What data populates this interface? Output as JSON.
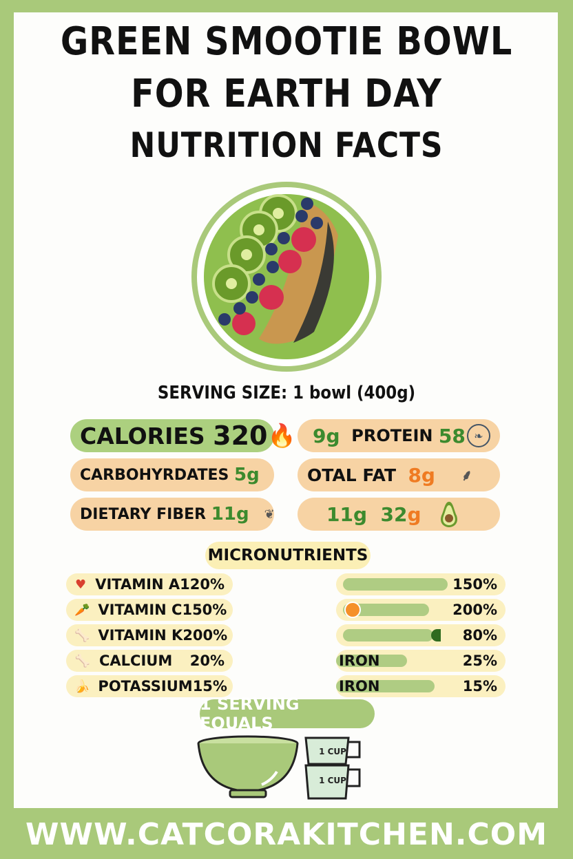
{
  "title_line1": "GREEN SMOOTIE BOWL",
  "title_line2": "FOR EARTH DAY",
  "title_line3": "NUTRITION FACTS",
  "serving_size": "SERVING SIZE: 1 bowl (400g)",
  "macros": {
    "calories": {
      "label": "CALORIES",
      "value": "320",
      "icon": "flame-icon"
    },
    "carbs": {
      "label": "CARBOHYRDATES",
      "value": "5g"
    },
    "fiber": {
      "label": "DIETARY FIBER",
      "value": "11g",
      "icon": "leaves-icon"
    },
    "protein": {
      "prefix": "9g",
      "label": "PROTEIN",
      "value": "58",
      "icon": "leaf-circle-icon"
    },
    "fat": {
      "label": "OTAL FAT",
      "value": "8g",
      "icon": "sprig-icon"
    },
    "extra": {
      "value1": "11g",
      "value2a": "32",
      "value2b": "g",
      "icon": "avocado-icon"
    }
  },
  "micronutrients_title": "MICRONUTRIENTS",
  "micros_left": [
    {
      "icon": "heart-icon",
      "name": "VITAMIN A",
      "value": "120%"
    },
    {
      "icon": "carrot-icon",
      "name": "VITAMIN C",
      "value": "150%"
    },
    {
      "icon": "bone-icon",
      "name": "VITAMIN K",
      "value": "200%"
    },
    {
      "icon": "bone-icon",
      "name": "CALCIUM",
      "value": "20%"
    },
    {
      "icon": "banana-icon",
      "name": "POTASSIUM",
      "value": "15%"
    }
  ],
  "micros_right": [
    {
      "label": "",
      "value": "150%",
      "fill": 1.0
    },
    {
      "label": "",
      "value": "200%",
      "fill": 0.82,
      "icon": "orange-icon"
    },
    {
      "label": "",
      "value": "80%",
      "fill": 0.86,
      "marker": 0.6
    },
    {
      "label": "IRON",
      "value": "25%",
      "fill": 0.68
    },
    {
      "label": "IRON",
      "value": "15%",
      "fill": 0.94
    }
  ],
  "serving_equals": "1 SERVING EQUALS",
  "cup_label_1": "1 CUP",
  "cup_label_2": "1 CUP",
  "footer": "WWW.CATCORAKITCHEN.COM",
  "colors": {
    "border": "#a9c97a",
    "pill": "#f7d3a4",
    "calories_pill": "#acd07f",
    "micro_pill": "#fbf0c0",
    "green_text": "#3c8a2e",
    "orange_text": "#ef7b22"
  }
}
